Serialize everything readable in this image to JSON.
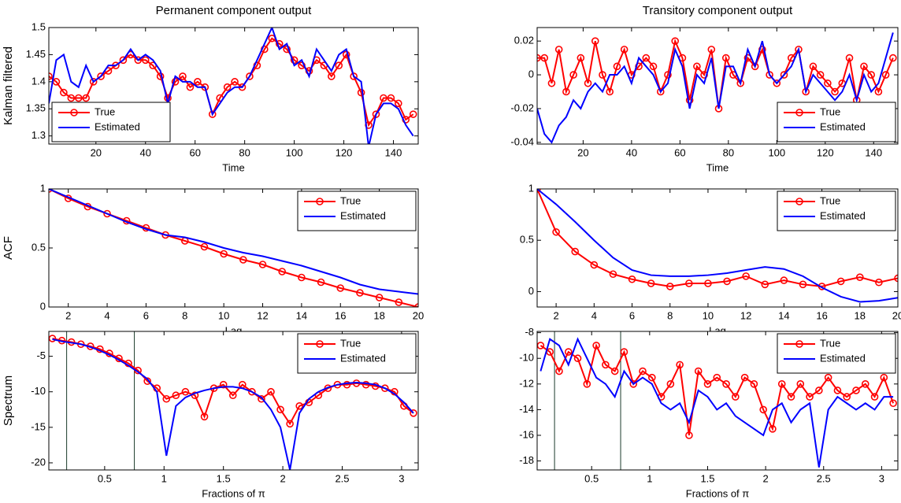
{
  "chart_data": [
    {
      "type": "line",
      "title": "Permanent component output",
      "ylabel": "Kalman filtered",
      "xlabel": "Time",
      "x": [
        1,
        4,
        7,
        10,
        13,
        16,
        19,
        22,
        25,
        28,
        31,
        34,
        37,
        40,
        43,
        46,
        49,
        52,
        55,
        58,
        61,
        64,
        67,
        70,
        73,
        76,
        79,
        82,
        85,
        88,
        91,
        94,
        97,
        100,
        103,
        106,
        109,
        112,
        115,
        118,
        121,
        124,
        127,
        130,
        133,
        136,
        139,
        142,
        145,
        148
      ],
      "series": [
        {
          "name": "True",
          "color": "#ff0000",
          "marker": "o",
          "values": [
            1.41,
            1.4,
            1.38,
            1.37,
            1.37,
            1.37,
            1.4,
            1.41,
            1.42,
            1.43,
            1.44,
            1.45,
            1.44,
            1.44,
            1.43,
            1.41,
            1.37,
            1.4,
            1.41,
            1.39,
            1.4,
            1.39,
            1.34,
            1.37,
            1.39,
            1.4,
            1.39,
            1.41,
            1.43,
            1.46,
            1.48,
            1.47,
            1.46,
            1.44,
            1.43,
            1.42,
            1.44,
            1.43,
            1.41,
            1.43,
            1.45,
            1.41,
            1.38,
            1.32,
            1.34,
            1.37,
            1.37,
            1.36,
            1.33,
            1.34
          ]
        },
        {
          "name": "Estimated",
          "color": "#0000ff",
          "marker": null,
          "values": [
            1.36,
            1.44,
            1.45,
            1.4,
            1.39,
            1.43,
            1.4,
            1.41,
            1.43,
            1.43,
            1.44,
            1.46,
            1.44,
            1.45,
            1.44,
            1.42,
            1.36,
            1.41,
            1.4,
            1.4,
            1.39,
            1.39,
            1.34,
            1.36,
            1.38,
            1.39,
            1.39,
            1.41,
            1.44,
            1.47,
            1.5,
            1.46,
            1.47,
            1.43,
            1.44,
            1.41,
            1.46,
            1.44,
            1.42,
            1.45,
            1.46,
            1.41,
            1.4,
            1.28,
            1.34,
            1.36,
            1.36,
            1.35,
            1.32,
            1.3
          ]
        }
      ],
      "xlim": [
        1,
        150
      ],
      "ylim": [
        1.285,
        1.5
      ],
      "xticks": [
        20,
        40,
        60,
        80,
        100,
        120,
        140
      ],
      "yticks": [
        1.3,
        1.35,
        1.4,
        1.45,
        1.5
      ],
      "legend": "lower left"
    },
    {
      "type": "line",
      "title": "Transitory component  output",
      "xlabel": "Time",
      "x": [
        1,
        4,
        7,
        10,
        13,
        16,
        19,
        22,
        25,
        28,
        31,
        34,
        37,
        40,
        43,
        46,
        49,
        52,
        55,
        58,
        61,
        64,
        67,
        70,
        73,
        76,
        79,
        82,
        85,
        88,
        91,
        94,
        97,
        100,
        103,
        106,
        109,
        112,
        115,
        118,
        121,
        124,
        127,
        130,
        133,
        136,
        139,
        142,
        145,
        148
      ],
      "series": [
        {
          "name": "True",
          "color": "#ff0000",
          "marker": "o",
          "values": [
            0.01,
            0.01,
            -0.005,
            0.015,
            -0.01,
            0,
            0.01,
            -0.005,
            0.02,
            0,
            -0.01,
            0.005,
            0.015,
            0,
            0.005,
            0.01,
            0.005,
            -0.01,
            0,
            0.02,
            0.01,
            -0.015,
            0.005,
            0,
            0.015,
            -0.02,
            0.01,
            0,
            -0.005,
            0.01,
            0.005,
            0.015,
            0,
            -0.005,
            0,
            0.01,
            0.015,
            -0.01,
            0.005,
            0,
            -0.005,
            -0.01,
            -0.005,
            0.01,
            -0.015,
            0.005,
            0,
            -0.01,
            0,
            0.01
          ]
        },
        {
          "name": "Estimated",
          "color": "#0000ff",
          "marker": null,
          "values": [
            -0.02,
            -0.035,
            -0.04,
            -0.03,
            -0.025,
            -0.015,
            -0.02,
            -0.01,
            -0.005,
            -0.01,
            0,
            0,
            0.005,
            -0.005,
            0.01,
            0.005,
            0,
            -0.01,
            -0.005,
            0.015,
            0.005,
            -0.02,
            0,
            -0.005,
            0.01,
            -0.02,
            0.005,
            0.005,
            -0.005,
            0.015,
            0.005,
            0.02,
            0,
            -0.005,
            0,
            0.005,
            0.015,
            -0.01,
            0,
            -0.005,
            -0.01,
            -0.015,
            -0.01,
            0,
            -0.015,
            0,
            -0.01,
            -0.005,
            0.01,
            0.025
          ]
        }
      ],
      "xlim": [
        1,
        150
      ],
      "ylim": [
        -0.041,
        0.028
      ],
      "xticks": [
        20,
        40,
        60,
        80,
        100,
        120,
        140
      ],
      "yticks": [
        -0.04,
        -0.02,
        0,
        0.02
      ],
      "legend": "lower right"
    },
    {
      "type": "line",
      "ylabel": "ACF",
      "xlabel": "Lag",
      "x": [
        1,
        2,
        3,
        4,
        5,
        6,
        7,
        8,
        9,
        10,
        11,
        12,
        13,
        14,
        15,
        16,
        17,
        18,
        19,
        20
      ],
      "series": [
        {
          "name": "True",
          "color": "#ff0000",
          "marker": "o",
          "values": [
            1,
            0.92,
            0.85,
            0.79,
            0.73,
            0.67,
            0.61,
            0.56,
            0.51,
            0.45,
            0.4,
            0.36,
            0.3,
            0.25,
            0.21,
            0.16,
            0.12,
            0.08,
            0.04,
            0
          ]
        },
        {
          "name": "Estimated",
          "color": "#0000ff",
          "marker": null,
          "values": [
            1,
            0.93,
            0.86,
            0.79,
            0.72,
            0.66,
            0.61,
            0.59,
            0.55,
            0.5,
            0.46,
            0.43,
            0.39,
            0.35,
            0.3,
            0.25,
            0.19,
            0.15,
            0.13,
            0.11
          ]
        }
      ],
      "xlim": [
        1,
        20
      ],
      "ylim": [
        0,
        1
      ],
      "xticks": [
        2,
        4,
        6,
        8,
        10,
        12,
        14,
        16,
        18,
        20
      ],
      "yticks": [
        0,
        0.5,
        1
      ],
      "legend": "upper right"
    },
    {
      "type": "line",
      "xlabel": "Lag",
      "x": [
        1,
        2,
        3,
        4,
        5,
        6,
        7,
        8,
        9,
        10,
        11,
        12,
        13,
        14,
        15,
        16,
        17,
        18,
        19,
        20
      ],
      "series": [
        {
          "name": "True",
          "color": "#ff0000",
          "marker": "o",
          "values": [
            1,
            0.58,
            0.39,
            0.26,
            0.17,
            0.12,
            0.08,
            0.05,
            0.08,
            0.08,
            0.1,
            0.15,
            0.07,
            0.11,
            0.07,
            0.05,
            0.1,
            0.14,
            0.09,
            0.13
          ]
        },
        {
          "name": "Estimated",
          "color": "#0000ff",
          "marker": null,
          "values": [
            1,
            0.85,
            0.68,
            0.5,
            0.33,
            0.21,
            0.16,
            0.15,
            0.15,
            0.16,
            0.18,
            0.21,
            0.24,
            0.22,
            0.15,
            0.04,
            -0.05,
            -0.1,
            -0.09,
            -0.06
          ]
        }
      ],
      "xlim": [
        1,
        20
      ],
      "ylim": [
        -0.15,
        1
      ],
      "xticks": [
        2,
        4,
        6,
        8,
        10,
        12,
        14,
        16,
        18,
        20
      ],
      "yticks": [
        0,
        0.5,
        1
      ],
      "legend": "upper right"
    },
    {
      "type": "line",
      "ylabel": "Spectrum",
      "xlabel": "Fractions of  π",
      "x": [
        0.06,
        0.14,
        0.22,
        0.3,
        0.38,
        0.46,
        0.54,
        0.62,
        0.7,
        0.78,
        0.86,
        0.94,
        1.02,
        1.1,
        1.18,
        1.26,
        1.34,
        1.42,
        1.5,
        1.58,
        1.66,
        1.74,
        1.82,
        1.9,
        1.98,
        2.06,
        2.14,
        2.22,
        2.3,
        2.38,
        2.46,
        2.54,
        2.62,
        2.7,
        2.78,
        2.86,
        2.94,
        3.02,
        3.1
      ],
      "series": [
        {
          "name": "True",
          "color": "#ff0000",
          "marker": "o",
          "values": [
            -2.5,
            -2.8,
            -3.0,
            -3.3,
            -3.6,
            -4.0,
            -4.6,
            -5.3,
            -6.0,
            -7.0,
            -8.5,
            -9.5,
            -11.0,
            -10.5,
            -10.0,
            -10.5,
            -13.5,
            -9.5,
            -9.0,
            -10.5,
            -9.0,
            -10.0,
            -11.0,
            -10.0,
            -12.5,
            -14.5,
            -12.0,
            -11.5,
            -10.5,
            -9.5,
            -9.0,
            -9.0,
            -8.8,
            -9.0,
            -9.2,
            -9.5,
            -10.0,
            -12.0,
            -13.0
          ]
        },
        {
          "name": "Estimated",
          "color": "#0000ff",
          "marker": null,
          "values": [
            -2.6,
            -2.9,
            -3.1,
            -3.3,
            -3.7,
            -4.2,
            -4.8,
            -5.5,
            -6.3,
            -7.2,
            -8.2,
            -10.0,
            -19.0,
            -12.0,
            -10.8,
            -10.2,
            -9.8,
            -9.5,
            -9.3,
            -9.3,
            -9.5,
            -10.0,
            -10.8,
            -12.5,
            -15.0,
            -21.0,
            -13.0,
            -11.0,
            -10.0,
            -9.4,
            -9.0,
            -8.8,
            -8.7,
            -8.8,
            -9.0,
            -9.5,
            -10.3,
            -11.5,
            -13.0
          ]
        }
      ],
      "vlines": [
        0.18,
        0.75
      ],
      "xlim": [
        0.03,
        3.14
      ],
      "ylim": [
        -21,
        -1.5
      ],
      "xticks": [
        0.5,
        1,
        1.5,
        2,
        2.5,
        3
      ],
      "yticks": [
        -20,
        -15,
        -10,
        -5
      ],
      "legend": "upper right"
    },
    {
      "type": "line",
      "xlabel": "Fractions of  π",
      "x": [
        0.06,
        0.14,
        0.22,
        0.3,
        0.38,
        0.46,
        0.54,
        0.62,
        0.7,
        0.78,
        0.86,
        0.94,
        1.02,
        1.1,
        1.18,
        1.26,
        1.34,
        1.42,
        1.5,
        1.58,
        1.66,
        1.74,
        1.82,
        1.9,
        1.98,
        2.06,
        2.14,
        2.22,
        2.3,
        2.38,
        2.46,
        2.54,
        2.62,
        2.7,
        2.78,
        2.86,
        2.94,
        3.02,
        3.1
      ],
      "series": [
        {
          "name": "True",
          "color": "#ff0000",
          "marker": "o",
          "values": [
            -9,
            -9.5,
            -11,
            -9.5,
            -10,
            -12,
            -9,
            -10.5,
            -11,
            -9.5,
            -12,
            -11,
            -11.5,
            -13,
            -12,
            -10.5,
            -16,
            -11,
            -12,
            -11.5,
            -12,
            -13,
            -11.5,
            -12,
            -14,
            -15.5,
            -12,
            -13,
            -12,
            -13,
            -12.5,
            -11.5,
            -12.5,
            -13,
            -12.5,
            -12,
            -13,
            -11.5,
            -13.5
          ]
        },
        {
          "name": "Estimated",
          "color": "#0000ff",
          "marker": null,
          "values": [
            -11,
            -8.5,
            -9,
            -10.5,
            -8.5,
            -10,
            -11.5,
            -12,
            -13,
            -11,
            -12,
            -11.5,
            -12,
            -13.5,
            -14,
            -13.5,
            -15,
            -12.5,
            -13,
            -14,
            -13.5,
            -14.5,
            -15,
            -15.5,
            -16,
            -14,
            -13.5,
            -15,
            -14,
            -13.5,
            -18.5,
            -14,
            -13,
            -13.5,
            -14,
            -13.5,
            -14,
            -13,
            -13
          ]
        }
      ],
      "vlines": [
        0.18,
        0.75
      ],
      "xlim": [
        0.03,
        3.14
      ],
      "ylim": [
        -18.7,
        -7.9
      ],
      "xticks": [
        0.5,
        1,
        1.5,
        2,
        2.5,
        3
      ],
      "yticks": [
        -18,
        -16,
        -14,
        -12,
        -10,
        -8
      ],
      "legend": "upper right"
    }
  ]
}
